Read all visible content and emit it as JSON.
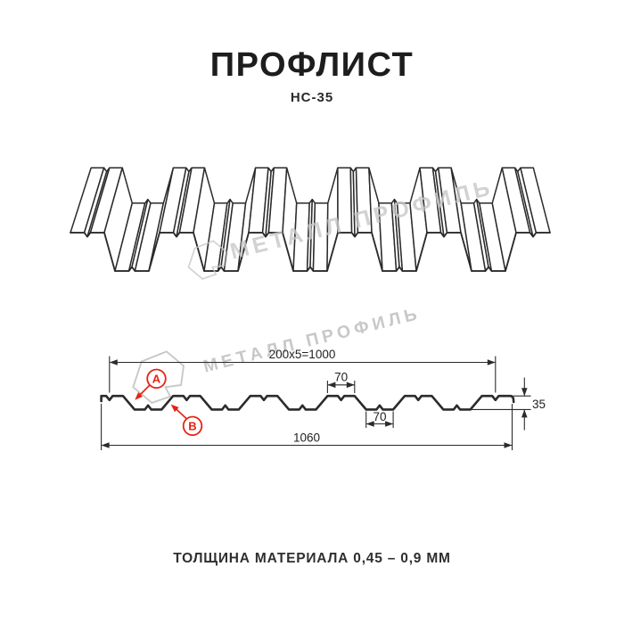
{
  "header": {
    "title": "ПРОФЛИСТ",
    "subtitle": "НС-35"
  },
  "watermark": {
    "text": "МЕТАЛЛ ПРОФИЛЬ",
    "color": "#c8c8c8"
  },
  "drawing": {
    "dim_coverage_width": "200x5=1000",
    "dim_rib_top_width": "70",
    "dim_rib_bottom_width": "70",
    "dim_profile_height": "35",
    "dim_overall_width": "1060",
    "marker_a": "А",
    "marker_b": "В",
    "accent_color": "#e42313",
    "line_color": "#2b2b2b"
  },
  "footer": {
    "note": "ТОЛЩИНА МАТЕРИАЛА 0,45 – 0,9 ММ"
  }
}
